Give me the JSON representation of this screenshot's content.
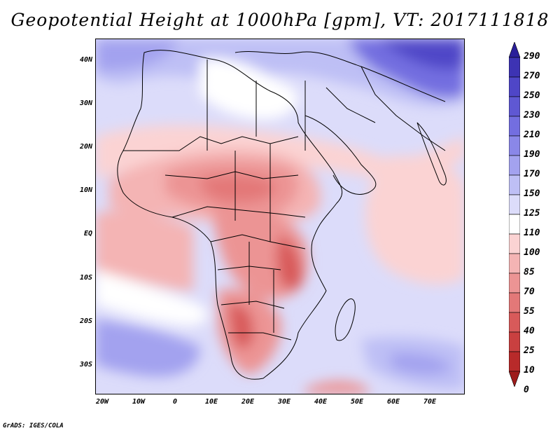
{
  "title": "Geopotential Height at 1000hPa [gpm], VT: 2017111818",
  "credit": "GrADS: IGES/COLA",
  "map": {
    "y_ticks": [
      "40N",
      "30N",
      "20N",
      "10N",
      "EQ",
      "10S",
      "20S",
      "30S"
    ],
    "x_ticks": [
      "20W",
      "10W",
      "0",
      "10E",
      "20E",
      "30E",
      "40E",
      "50E",
      "60E",
      "70E"
    ]
  },
  "colorbar": {
    "labels": [
      "290",
      "270",
      "250",
      "230",
      "210",
      "190",
      "170",
      "150",
      "125",
      "110",
      "100",
      "85",
      "70",
      "55",
      "40",
      "25",
      "10",
      "0"
    ],
    "colors": [
      "#2a1f9a",
      "#3d33b3",
      "#4f46c7",
      "#5f58d3",
      "#736ee0",
      "#8a87e8",
      "#a3a2ef",
      "#bebff5",
      "#dcdcfa",
      "#ffffff",
      "#fbd3d3",
      "#f4b4b4",
      "#ec9494",
      "#e37878",
      "#d85a5a",
      "#c94040",
      "#b82a2a",
      "#9e1c1c"
    ]
  },
  "colors": {
    "ocean_base": "#dcdcfa",
    "land_border": "#000000"
  }
}
